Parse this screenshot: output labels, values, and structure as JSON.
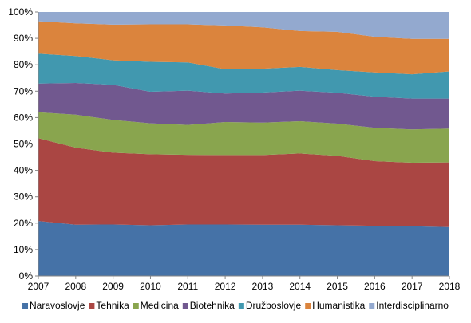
{
  "chart_data": {
    "type": "area",
    "stacking": "percent",
    "x": [
      "2007",
      "2008",
      "2009",
      "2010",
      "2011",
      "2012",
      "2013",
      "2014",
      "2015",
      "2016",
      "2017",
      "2018"
    ],
    "ylim": [
      0,
      100
    ],
    "y_ticks": [
      "0%",
      "10%",
      "20%",
      "30%",
      "40%",
      "50%",
      "60%",
      "70%",
      "80%",
      "90%",
      "100%"
    ],
    "grid": false,
    "legend_position": "bottom",
    "series": [
      {
        "name": "Naravoslovje",
        "color": "#4572A7",
        "values": [
          20.8,
          19.4,
          19.5,
          19.2,
          19.5,
          19.5,
          19.4,
          19.4,
          19.2,
          19.0,
          18.8,
          18.5
        ]
      },
      {
        "name": "Tehnika",
        "color": "#AA4643",
        "values": [
          31.4,
          29.2,
          27.2,
          26.9,
          26.4,
          26.3,
          26.4,
          27.0,
          26.3,
          24.5,
          24.1,
          24.5
        ]
      },
      {
        "name": "Medicina",
        "color": "#89A54E",
        "values": [
          9.8,
          12.5,
          12.4,
          11.7,
          11.3,
          12.5,
          12.3,
          12.2,
          12.2,
          12.6,
          12.6,
          12.8
        ]
      },
      {
        "name": "Biotehnika",
        "color": "#71588F",
        "values": [
          10.9,
          12.0,
          13.3,
          12.0,
          13.0,
          10.8,
          11.4,
          11.6,
          11.7,
          11.8,
          11.7,
          11.4
        ]
      },
      {
        "name": "Družboslovje",
        "color": "#4198AF",
        "values": [
          11.3,
          10.2,
          9.3,
          11.3,
          10.7,
          9.2,
          9.0,
          9.0,
          8.6,
          9.2,
          9.2,
          10.3
        ]
      },
      {
        "name": "Humanistika",
        "color": "#DB843D",
        "values": [
          12.3,
          12.4,
          13.5,
          14.2,
          14.4,
          16.6,
          15.7,
          13.6,
          14.5,
          13.5,
          13.4,
          12.3
        ]
      },
      {
        "name": "Interdisciplinarno",
        "color": "#93A9CF",
        "values": [
          3.5,
          4.3,
          4.8,
          4.7,
          4.7,
          5.1,
          5.8,
          7.2,
          7.5,
          9.4,
          10.2,
          10.2
        ]
      }
    ]
  }
}
